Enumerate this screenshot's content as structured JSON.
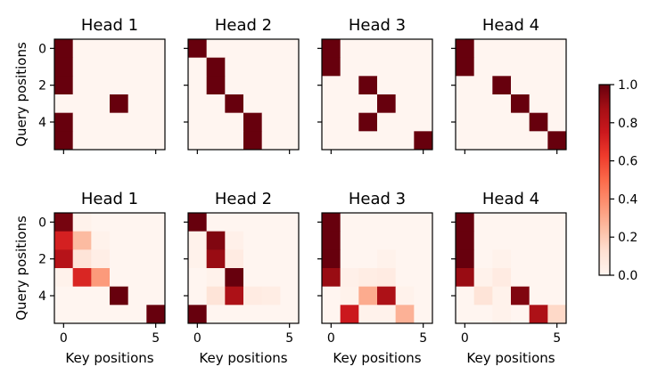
{
  "chart_data": {
    "type": "heatmap",
    "colormap": "Reds",
    "colorbar": {
      "range": [
        0.0,
        1.0
      ],
      "ticks": [
        "0.0",
        "0.2",
        "0.4",
        "0.6",
        "0.8",
        "1.0"
      ]
    },
    "xlabel": "Key positions",
    "ylabel": "Query positions",
    "x_ticks": [
      "0",
      "5"
    ],
    "y_ticks": [
      "0",
      "2",
      "4"
    ],
    "grid": false,
    "rows": [
      {
        "panels": [
          {
            "title": "Head 1",
            "matrix": [
              [
                1,
                0,
                0,
                0,
                0,
                0
              ],
              [
                1,
                0,
                0,
                0,
                0,
                0
              ],
              [
                1,
                0,
                0,
                0,
                0,
                0
              ],
              [
                0,
                0,
                0,
                1,
                0,
                0
              ],
              [
                1,
                0,
                0,
                0,
                0,
                0
              ],
              [
                1,
                0,
                0,
                0,
                0,
                0
              ]
            ]
          },
          {
            "title": "Head 2",
            "matrix": [
              [
                1,
                0,
                0,
                0,
                0,
                0
              ],
              [
                0,
                1,
                0,
                0,
                0,
                0
              ],
              [
                0,
                1,
                0,
                0,
                0,
                0
              ],
              [
                0,
                0,
                1,
                0,
                0,
                0
              ],
              [
                0,
                0,
                0,
                1,
                0,
                0
              ],
              [
                0,
                0,
                0,
                1,
                0,
                0
              ]
            ]
          },
          {
            "title": "Head 3",
            "matrix": [
              [
                1,
                0,
                0,
                0,
                0,
                0
              ],
              [
                1,
                0,
                0,
                0,
                0,
                0
              ],
              [
                0,
                0,
                1,
                0,
                0,
                0
              ],
              [
                0,
                0,
                0,
                1,
                0,
                0
              ],
              [
                0,
                0,
                1,
                0,
                0,
                0
              ],
              [
                0,
                0,
                0,
                0,
                0,
                1
              ]
            ]
          },
          {
            "title": "Head 4",
            "matrix": [
              [
                1,
                0,
                0,
                0,
                0,
                0
              ],
              [
                1,
                0,
                0,
                0,
                0,
                0
              ],
              [
                0,
                0,
                1,
                0,
                0,
                0
              ],
              [
                0,
                0,
                0,
                1,
                0,
                0
              ],
              [
                0,
                0,
                0,
                0,
                1,
                0
              ],
              [
                0,
                0,
                0,
                0,
                0,
                1
              ]
            ]
          }
        ]
      },
      {
        "panels": [
          {
            "title": "Head 1",
            "matrix": [
              [
                0.97,
                0.02,
                0,
                0,
                0,
                0
              ],
              [
                0.72,
                0.25,
                0.02,
                0,
                0,
                0
              ],
              [
                0.82,
                0.1,
                0.04,
                0,
                0,
                0
              ],
              [
                0.02,
                0.7,
                0.35,
                0,
                0,
                0
              ],
              [
                0,
                0,
                0,
                1.0,
                0,
                0
              ],
              [
                0,
                0,
                0,
                0,
                0,
                1.0
              ]
            ]
          },
          {
            "title": "Head 2",
            "matrix": [
              [
                1.0,
                0,
                0,
                0,
                0,
                0
              ],
              [
                0.02,
                0.95,
                0.03,
                0,
                0,
                0
              ],
              [
                0.02,
                0.9,
                0.06,
                0,
                0,
                0
              ],
              [
                0,
                0.02,
                1.0,
                0,
                0,
                0
              ],
              [
                0,
                0.1,
                0.85,
                0.06,
                0.05,
                0
              ],
              [
                1.0,
                0,
                0,
                0,
                0,
                0
              ]
            ]
          },
          {
            "title": "Head 3",
            "matrix": [
              [
                1.0,
                0,
                0,
                0,
                0,
                0
              ],
              [
                1.0,
                0,
                0,
                0,
                0,
                0
              ],
              [
                1.0,
                0,
                0,
                0.02,
                0,
                0
              ],
              [
                0.9,
                0.03,
                0.05,
                0.06,
                0,
                0
              ],
              [
                0,
                0.02,
                0.3,
                0.85,
                0.02,
                0
              ],
              [
                0,
                0.75,
                0.02,
                0.02,
                0.28,
                0
              ]
            ]
          },
          {
            "title": "Head 4",
            "matrix": [
              [
                1.0,
                0,
                0,
                0,
                0,
                0
              ],
              [
                1.0,
                0,
                0,
                0,
                0,
                0
              ],
              [
                1.0,
                0,
                0.02,
                0,
                0,
                0
              ],
              [
                0.9,
                0.02,
                0.06,
                0,
                0,
                0
              ],
              [
                0,
                0.1,
                0.02,
                0.95,
                0,
                0
              ],
              [
                0,
                0,
                0.02,
                0,
                0.85,
                0.15
              ]
            ]
          }
        ]
      }
    ]
  }
}
